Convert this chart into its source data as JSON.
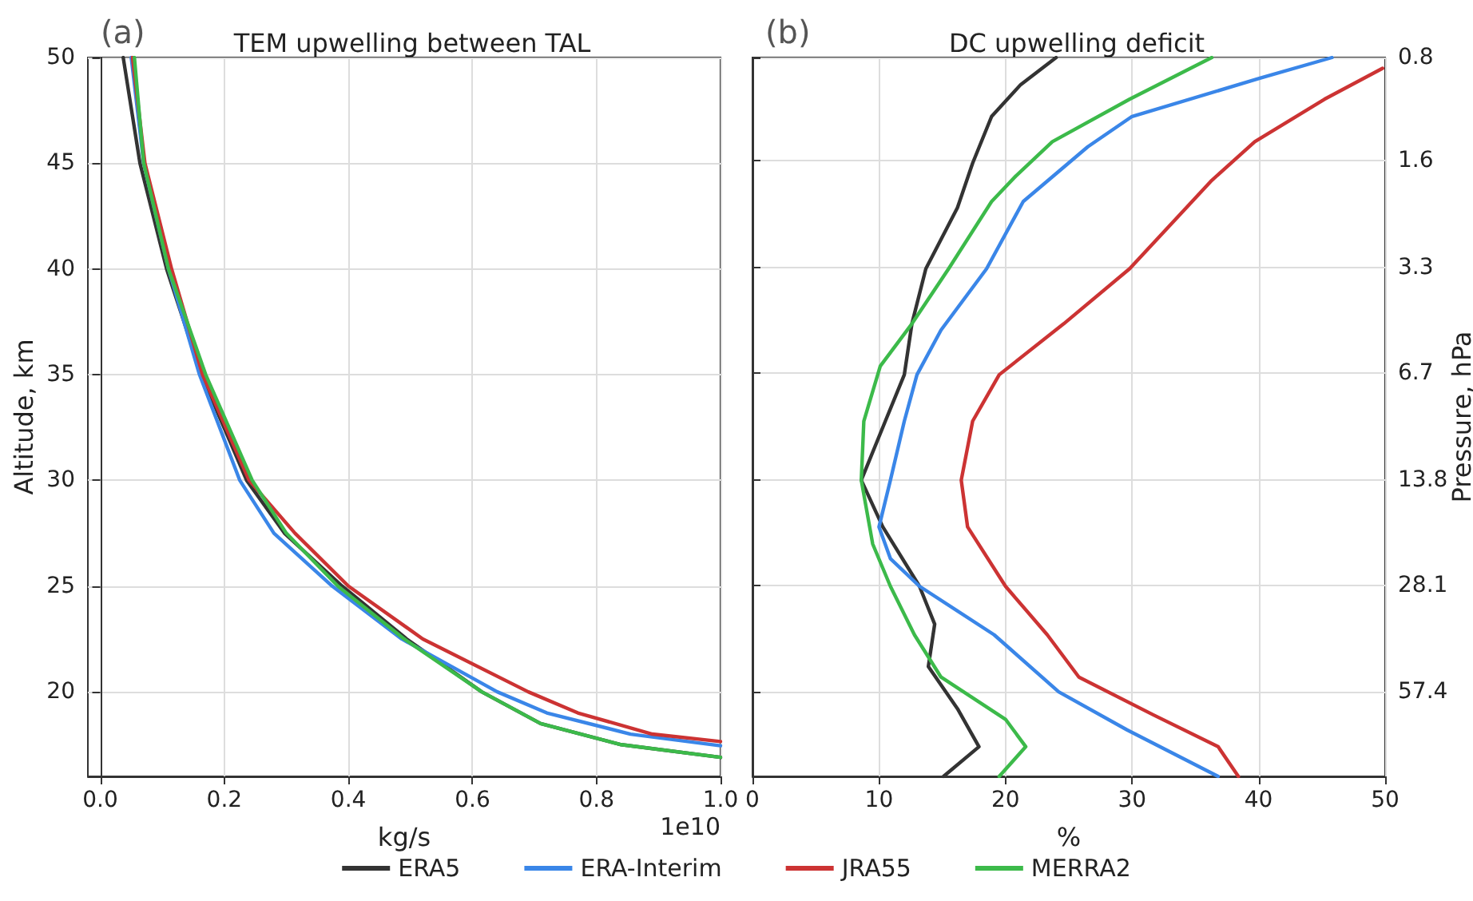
{
  "chart_data": [
    {
      "type": "line",
      "title": "TEM upwelling between TAL",
      "xlabel": "kg/s",
      "ylabel": "Altitude, km",
      "annotations": [
        "(a)",
        "1e10"
      ],
      "xlim": [
        -0.02,
        1.0
      ],
      "xticks": [
        {
          "value": 0,
          "label": "0.0"
        },
        0.2,
        0.4,
        0.6,
        0.8,
        {
          "value": 1,
          "label": "1.0"
        }
      ],
      "ylim": [
        16,
        50
      ],
      "yticks": [
        20,
        25,
        30,
        35,
        40,
        45,
        50
      ],
      "grid": true,
      "legend": "bottom",
      "marker": "none",
      "line_style": "solid",
      "series": [
        {
          "name": "ERA5",
          "color": "#333333",
          "x": [
            0.037,
            0.064,
            0.107,
            0.163,
            0.236,
            0.297,
            0.39,
            0.494,
            0.615,
            0.71,
            0.84,
            1.0
          ],
          "values": [
            50,
            45,
            40,
            35,
            30,
            27.5,
            25,
            22.5,
            20,
            18.5,
            17.5,
            16.9
          ]
        },
        {
          "name": "ERA-Interim",
          "color": "#3a86e8",
          "x": [
            0.05,
            0.07,
            0.11,
            0.16,
            0.225,
            0.28,
            0.374,
            0.486,
            0.64,
            0.72,
            0.855,
            1.0
          ],
          "values": [
            50,
            45,
            40,
            35,
            30,
            27.5,
            25,
            22.5,
            20,
            19,
            18,
            17.45
          ]
        },
        {
          "name": "JRA55",
          "color": "#cc3333",
          "x": [
            0.052,
            0.072,
            0.115,
            0.165,
            0.24,
            0.314,
            0.4,
            0.52,
            0.69,
            0.77,
            0.89,
            1.0
          ],
          "values": [
            50,
            45,
            40,
            35,
            30,
            27.5,
            25,
            22.5,
            20,
            19,
            18,
            17.65
          ]
        },
        {
          "name": "MERRA2",
          "color": "#3cba4a",
          "x": [
            0.055,
            0.07,
            0.11,
            0.17,
            0.245,
            0.3,
            0.383,
            0.49,
            0.615,
            0.71,
            0.84,
            1.0
          ],
          "values": [
            50,
            45,
            40,
            35,
            30,
            27.5,
            25,
            22.5,
            20,
            18.5,
            17.5,
            16.9
          ]
        }
      ]
    },
    {
      "type": "line",
      "title": "DC upwelling deficit",
      "xlabel": "%",
      "y2label": "Pressure, hPa",
      "annotations": [
        "(b)"
      ],
      "xlim": [
        0,
        50
      ],
      "xticks": [
        0,
        10,
        20,
        30,
        40,
        50
      ],
      "y2lim": [
        101.5,
        0.8
      ],
      "y2ticks": [
        57.4,
        28.1,
        13.8,
        6.7,
        3.3,
        1.6,
        0.8
      ],
      "log": "y2",
      "grid": true,
      "marker": "none",
      "line_style": "solid",
      "series": [
        {
          "color": "#333333",
          "axis": "y2",
          "x": [
            24.0,
            21.2,
            18.9,
            17.4,
            16.2,
            13.7,
            12.6,
            12.0,
            10.5,
            8.6,
            10.3,
            13.2,
            14.4,
            13.9,
            16.2,
            17.9,
            15.1
          ],
          "values": [
            0.8,
            0.96,
            1.19,
            1.63,
            2.2,
            3.32,
            4.81,
            6.78,
            9.27,
            13.8,
            18.9,
            28.2,
            36.4,
            48.4,
            64.3,
            83.1,
            101.5
          ]
        },
        {
          "color": "#3a86e8",
          "axis": "y2",
          "x": [
            45.8,
            40.1,
            30.0,
            26.5,
            21.4,
            18.5,
            14.9,
            13.0,
            12.0,
            10.9,
            10.0,
            10.9,
            13.2,
            19.1,
            24.2,
            29.6,
            36.8
          ],
          "values": [
            0.8,
            0.92,
            1.19,
            1.46,
            2.11,
            3.32,
            5.02,
            6.78,
            9.27,
            13.8,
            18.9,
            23.4,
            28.2,
            39.1,
            57.4,
            74.2,
            101.5
          ]
        },
        {
          "color": "#cc3333",
          "axis": "y2",
          "x": [
            49.8,
            45.2,
            39.7,
            36.3,
            29.8,
            24.6,
            19.5,
            17.4,
            16.5,
            17.0,
            20.0,
            23.3,
            25.8,
            31.7,
            36.8,
            38.4
          ],
          "values": [
            0.86,
            1.06,
            1.41,
            1.83,
            3.32,
            4.81,
            6.78,
            9.27,
            13.8,
            18.9,
            28.2,
            39.1,
            52.0,
            67.1,
            83.1,
            101.5
          ]
        },
        {
          "color": "#3cba4a",
          "axis": "y2",
          "x": [
            36.3,
            29.8,
            23.7,
            20.8,
            18.9,
            15.5,
            12.6,
            10.1,
            8.8,
            8.6,
            9.5,
            10.9,
            12.8,
            14.9,
            20.0,
            21.6,
            19.5
          ],
          "values": [
            0.8,
            1.06,
            1.41,
            1.78,
            2.11,
            3.32,
            4.81,
            6.4,
            9.27,
            13.8,
            21.2,
            28.2,
            39.1,
            52.0,
            69.1,
            83.1,
            101.5
          ]
        }
      ]
    }
  ]
}
